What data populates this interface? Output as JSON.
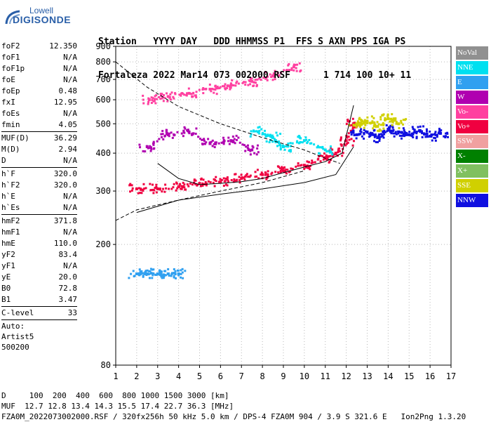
{
  "logo": {
    "line1": "Lowell",
    "line2": "DIGISONDE"
  },
  "header": {
    "row1": [
      "Station",
      "YYYY DAY",
      "DDD HHMMSS",
      "P1",
      "FFS",
      "S",
      "AXN",
      "PPS",
      "IGA",
      "PS"
    ],
    "row2": [
      "Fortaleza",
      "2022 Mar14",
      "073 002000",
      "RSF",
      "",
      "1",
      "714",
      "100",
      "10+",
      "11"
    ]
  },
  "params": {
    "group1": [
      {
        "label": "foF2",
        "value": "12.350"
      },
      {
        "label": "foF1",
        "value": "N/A"
      },
      {
        "label": "foF1p",
        "value": "N/A"
      },
      {
        "label": "foE",
        "value": "N/A"
      },
      {
        "label": "foEp",
        "value": "0.48"
      },
      {
        "label": "fxI",
        "value": "12.95"
      },
      {
        "label": "foEs",
        "value": "N/A"
      },
      {
        "label": "fmin",
        "value": "4.05"
      }
    ],
    "group2": [
      {
        "label": "MUF(D)",
        "value": "36.29"
      },
      {
        "label": "M(D)",
        "value": "2.94"
      },
      {
        "label": "D",
        "value": "N/A"
      }
    ],
    "group3": [
      {
        "label": "h`F",
        "value": "320.0"
      },
      {
        "label": "h`F2",
        "value": "320.0"
      },
      {
        "label": "h`E",
        "value": "N/A"
      },
      {
        "label": "h`Es",
        "value": "N/A"
      }
    ],
    "group4": [
      {
        "label": "hmF2",
        "value": "371.8"
      },
      {
        "label": "hmF1",
        "value": "N/A"
      },
      {
        "label": "hmE",
        "value": "110.0"
      },
      {
        "label": "yF2",
        "value": "83.4"
      },
      {
        "label": "yF1",
        "value": "N/A"
      },
      {
        "label": "yE",
        "value": "20.0"
      },
      {
        "label": "B0",
        "value": "72.8"
      },
      {
        "label": "B1",
        "value": "3.47"
      }
    ],
    "group5": [
      {
        "label": "C-level",
        "value": "33"
      }
    ],
    "auto": [
      "Auto:",
      "Artist5",
      "500200"
    ]
  },
  "legend": [
    {
      "label": "NoVal",
      "color": "#909090"
    },
    {
      "label": "NNE",
      "color": "#00e0f0"
    },
    {
      "label": "E",
      "color": "#30a0f0"
    },
    {
      "label": "W",
      "color": "#b000b0"
    },
    {
      "label": "Vo-",
      "color": "#ff40a0"
    },
    {
      "label": "Vo+",
      "color": "#f00040"
    },
    {
      "label": "SSW",
      "color": "#f0a0a0"
    },
    {
      "label": "X-",
      "color": "#008000"
    },
    {
      "label": "X+",
      "color": "#80c060"
    },
    {
      "label": "SSE",
      "color": "#d0d000"
    },
    {
      "label": "NNW",
      "color": "#1010e0"
    }
  ],
  "footer": {
    "line1": "D     100  200  400  600  800 1000 1500 3000 [km]",
    "line2": "MUF  12.7 12.8 13.4 14.3 15.5 17.4 22.7 36.3 [MHz]",
    "line3": "FZA0M_2022073002000.RSF / 320fx256h 50 kHz 5.0 km / DPS-4 FZA0M 904 / 3.9 S 321.6 E   Ion2Png 1.3.20"
  },
  "chart_data": {
    "type": "scatter",
    "title": "",
    "xlabel": "",
    "ylabel": "",
    "xlim": [
      1,
      17
    ],
    "ylim": [
      80,
      900
    ],
    "y_scale": "log",
    "xticks": [
      1,
      2,
      3,
      4,
      5,
      6,
      7,
      8,
      9,
      10,
      11,
      12,
      13,
      14,
      15,
      16,
      17
    ],
    "yticks": [
      80,
      200,
      300,
      400,
      500,
      600,
      700,
      800,
      900
    ],
    "grid": true,
    "series": [
      {
        "name": "E",
        "color": "#30a0f0",
        "x": [
          2.0,
          2.5,
          3.0,
          3.5,
          4.0
        ],
        "y": [
          160,
          160,
          160,
          160,
          160
        ]
      },
      {
        "name": "Vo+",
        "color": "#f00040",
        "x": [
          2.0,
          3.0,
          4.0,
          5.0,
          6.0,
          7.0,
          8.0,
          9.0,
          10.0,
          11.0,
          11.5,
          12.0,
          12.35
        ],
        "y": [
          305,
          305,
          310,
          318,
          322,
          330,
          340,
          350,
          365,
          385,
          400,
          440,
          500
        ]
      },
      {
        "name": "W",
        "color": "#b000b0",
        "x": [
          2.5,
          3.5,
          4.5,
          5.5,
          6.5,
          7.5
        ],
        "y": [
          420,
          460,
          470,
          430,
          440,
          410
        ]
      },
      {
        "name": "Vo-",
        "color": "#ff40a0",
        "x": [
          2.6,
          3.5,
          4.5,
          5.5,
          6.5,
          7.5,
          8.5,
          9.5
        ],
        "y": [
          600,
          615,
          630,
          650,
          670,
          690,
          720,
          770
        ]
      },
      {
        "name": "NNE",
        "color": "#00e0f0",
        "x": [
          7.8,
          8.5,
          9.0,
          10.0,
          11.0
        ],
        "y": [
          470,
          450,
          420,
          440,
          410
        ]
      },
      {
        "name": "NNW",
        "color": "#1010e0",
        "x": [
          12.5,
          13.0,
          13.5,
          14.0,
          14.5,
          15.0,
          15.5,
          16.0,
          16.5
        ],
        "y": [
          460,
          470,
          450,
          480,
          470,
          460,
          475,
          455,
          465
        ]
      },
      {
        "name": "SSE",
        "color": "#d0d000",
        "x": [
          12.5,
          13.0,
          13.5,
          14.0,
          14.5
        ],
        "y": [
          500,
          510,
          490,
          520,
          500
        ]
      }
    ],
    "curves": [
      {
        "name": "profile",
        "style": "solid",
        "x": [
          3.0,
          4.0,
          5.0,
          6.0,
          7.0,
          8.0,
          9.0,
          10.0,
          11.0,
          11.8,
          12.35
        ],
        "y": [
          370,
          330,
          315,
          318,
          322,
          330,
          345,
          360,
          375,
          400,
          575
        ]
      },
      {
        "name": "virtual",
        "style": "solid",
        "x": [
          2.0,
          4.0,
          6.0,
          8.0,
          10.0,
          11.5,
          12.35
        ],
        "y": [
          255,
          280,
          293,
          305,
          320,
          340,
          420
        ]
      },
      {
        "name": "dashed",
        "style": "dashed",
        "x": [
          1.0,
          2.5,
          4.0,
          6.0,
          8.0,
          10.0,
          11.0,
          11.7
        ],
        "y": [
          800,
          660,
          570,
          500,
          450,
          410,
          385,
          370
        ]
      },
      {
        "name": "dashed2",
        "style": "dashed",
        "x": [
          1.0,
          2.0,
          4.0,
          6.0,
          8.0,
          10.0
        ],
        "y": [
          240,
          260,
          280,
          300,
          320,
          350
        ]
      }
    ]
  }
}
